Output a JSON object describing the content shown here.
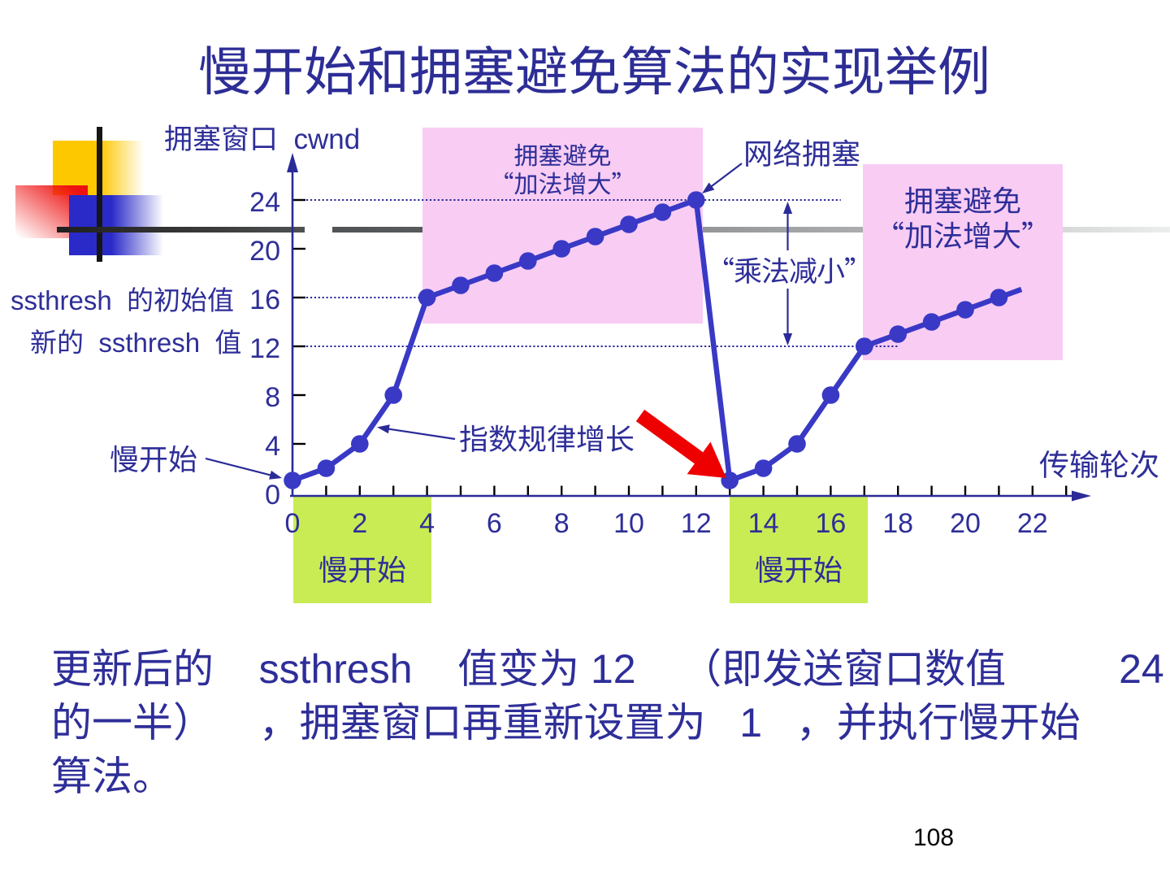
{
  "slide": {
    "title": "慢开始和拥塞避免算法的实现举例",
    "page_number": "108",
    "body_lines": [
      "更新后的    ssthresh    值变为 12    （即发送窗口数值          24",
      "的一半）    ，拥塞窗口再重新设置为   1   ，并执行慢开始",
      "算法。"
    ]
  },
  "labels": {
    "y_axis_title": "拥塞窗口  cwnd",
    "x_axis_title": "传输轮次",
    "congestion_avoidance_1": {
      "line1": "拥塞避免",
      "line2": "“加法增大”"
    },
    "congestion_avoidance_2": {
      "line1": "拥塞避免",
      "line2": "“加法增大”"
    },
    "network_congestion": "网络拥塞",
    "multiplicative_decrease": "“乘法减小”",
    "exponential_growth": "指数规律增长",
    "slow_start_pointer": "慢开始",
    "slow_start_phase_1": "慢开始",
    "slow_start_phase_2": "慢开始",
    "ssthresh_initial": "ssthresh  的初始值",
    "ssthresh_new": "新的  ssthresh  值"
  },
  "chart_data": {
    "type": "line",
    "title": "",
    "xlabel": "传输轮次",
    "ylabel": "拥塞窗口 cwnd",
    "series": [
      {
        "name": "cwnd",
        "points": [
          [
            0,
            1
          ],
          [
            1,
            2
          ],
          [
            2,
            4
          ],
          [
            3,
            8
          ],
          [
            4,
            16
          ],
          [
            5,
            17
          ],
          [
            6,
            18
          ],
          [
            7,
            19
          ],
          [
            8,
            20
          ],
          [
            9,
            21
          ],
          [
            10,
            22
          ],
          [
            11,
            23
          ],
          [
            12,
            24
          ],
          [
            13,
            1
          ],
          [
            14,
            2
          ],
          [
            15,
            4
          ],
          [
            16,
            8
          ],
          [
            17,
            12
          ],
          [
            18,
            13
          ],
          [
            19,
            14
          ],
          [
            20,
            15
          ],
          [
            21,
            16
          ]
        ],
        "tail_point": [
          21.67,
          16.67
        ]
      }
    ],
    "x_tick_labels": [
      0,
      2,
      4,
      6,
      8,
      10,
      12,
      14,
      16,
      18,
      20,
      22
    ],
    "x_tick_marks_from": 1,
    "x_tick_marks_to": 23,
    "y_tick_labels": [
      0,
      4,
      8,
      12,
      16,
      20,
      24
    ],
    "xlim": [
      0,
      23.7
    ],
    "ylim": [
      0,
      27.6
    ],
    "grid": "off",
    "dotted_levels": [
      {
        "value": 24,
        "x_end": 16.3
      },
      {
        "value": 16,
        "x_end": 3.91
      },
      {
        "value": 12,
        "x_end": 18.02
      }
    ],
    "ssthresh_initial_value": 16,
    "ssthresh_new_value": 12,
    "annotations": [
      "网络拥塞",
      "“乘法减小”",
      "指数规律增长",
      "慢开始",
      "拥塞避免 “加法增大”"
    ]
  },
  "colors": {
    "text": "#2e2e99",
    "curve": "#3939c6",
    "axis": "#2b2b98",
    "dotted_line": "#2a2a9a",
    "tick": "#000000",
    "pink_box": "#f8ccf3",
    "green_box": "#c9ec55",
    "red_arrow": "#ee0000",
    "page_number": "#000000",
    "logo_yellow": "#fdc800",
    "logo_red": "#ee1111",
    "logo_blue": "#2a2ac8"
  }
}
